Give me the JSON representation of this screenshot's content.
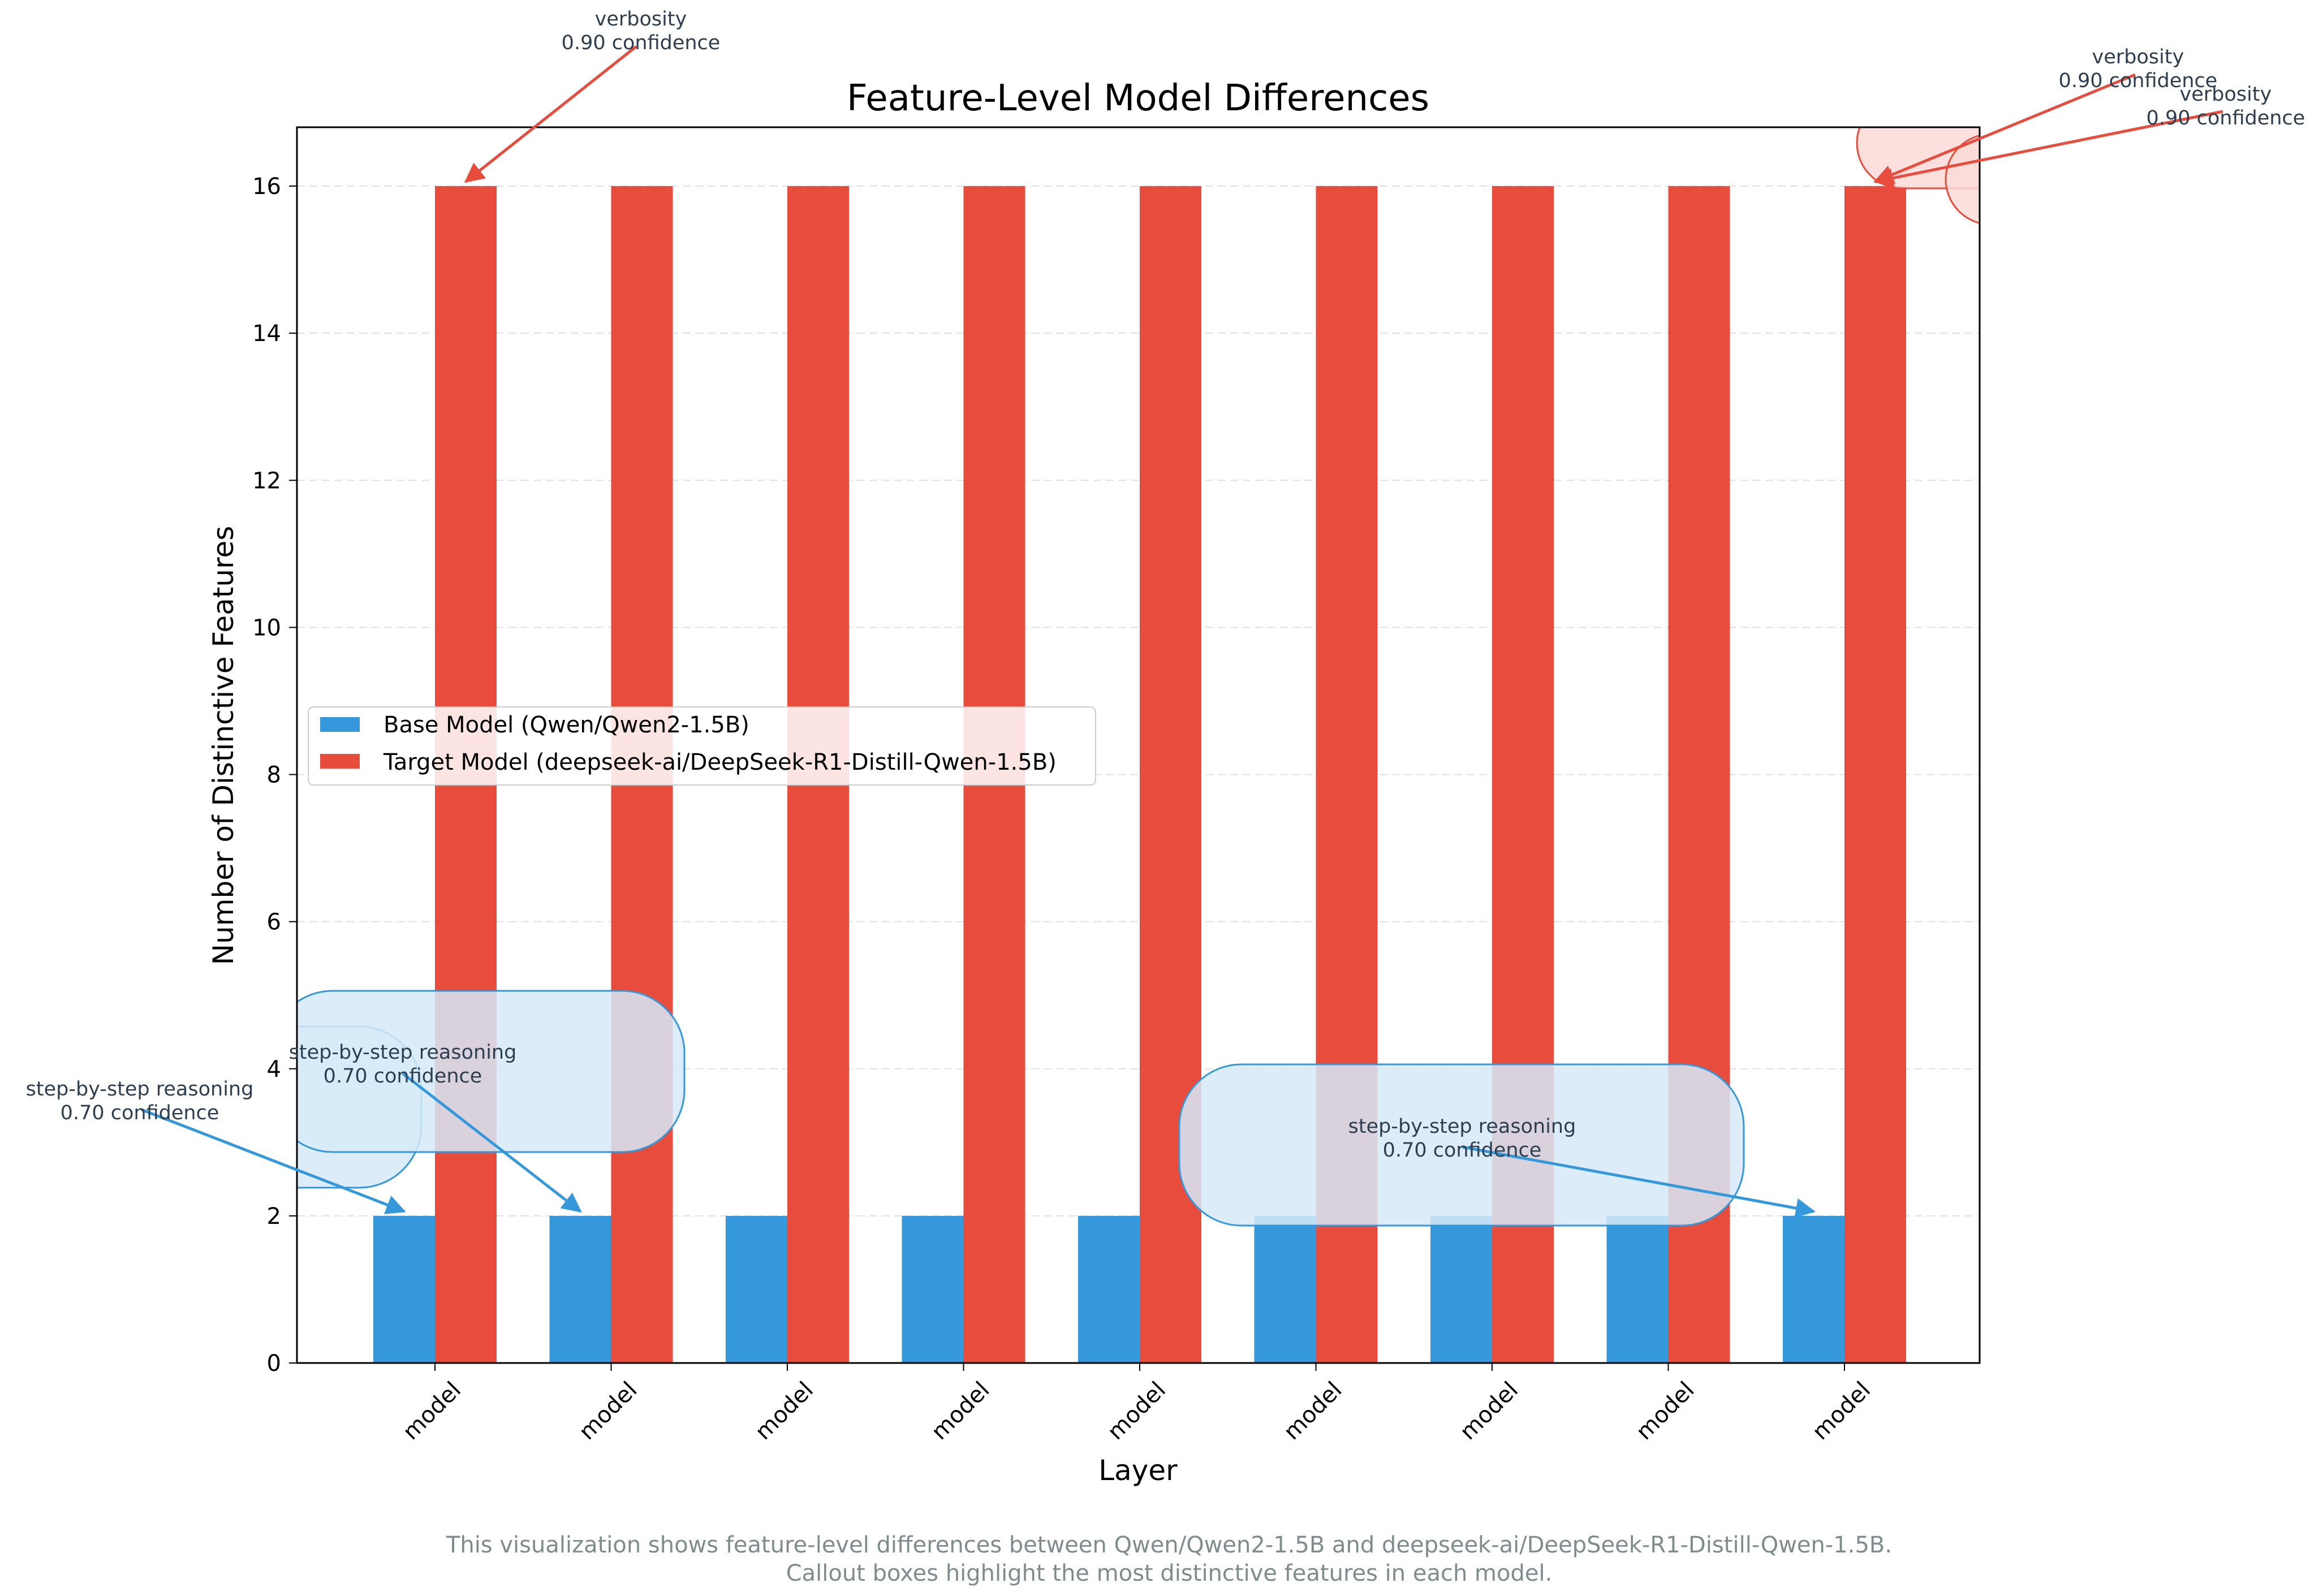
{
  "chart_data": {
    "type": "bar",
    "title": "Feature-Level Model Differences",
    "xlabel": "Layer",
    "ylabel": "Number of Distinctive Features",
    "categories": [
      "model",
      "model",
      "model",
      "model",
      "model",
      "model",
      "model",
      "model",
      "model"
    ],
    "series": [
      {
        "name": "Base Model (Qwen/Qwen2-1.5B)",
        "color": "#3498db",
        "values": [
          2,
          2,
          2,
          2,
          2,
          2,
          2,
          2,
          2
        ]
      },
      {
        "name": "Target Model (deepseek-ai/DeepSeek-R1-Distill-Qwen-1.5B)",
        "color": "#e74c3c",
        "values": [
          16,
          16,
          16,
          16,
          16,
          16,
          16,
          16,
          16
        ]
      }
    ],
    "ylim": [
      0,
      16.8
    ],
    "yticks": [
      0,
      2,
      4,
      6,
      8,
      10,
      12,
      14,
      16
    ],
    "grid": "y-dashed",
    "legend_position": "center-left",
    "annotations": [
      {
        "text": [
          "verbosity",
          "0.90 confidence"
        ],
        "series": 1,
        "category": 0,
        "color": "#e74c3c"
      },
      {
        "text": [
          "verbosity",
          "0.90 confidence"
        ],
        "series": 1,
        "category": 8,
        "color": "#e74c3c"
      },
      {
        "text": [
          "verbosity",
          "0.90 confidence"
        ],
        "series": 1,
        "category": 8,
        "color": "#e74c3c"
      },
      {
        "text": [
          "step-by-step reasoning",
          "0.70 confidence"
        ],
        "series": 0,
        "category": 0,
        "color": "#3498db"
      },
      {
        "text": [
          "step-by-step reasoning",
          "0.70 confidence"
        ],
        "series": 0,
        "category": 1,
        "color": "#3498db"
      },
      {
        "text": [
          "step-by-step reasoning",
          "0.70 confidence"
        ],
        "series": 0,
        "category": 8,
        "color": "#3498db"
      }
    ],
    "caption": [
      "This visualization shows feature-level differences between Qwen/Qwen2-1.5B and deepseek-ai/DeepSeek-R1-Distill-Qwen-1.5B.",
      "Callout boxes highlight the most distinctive features in each model."
    ]
  }
}
